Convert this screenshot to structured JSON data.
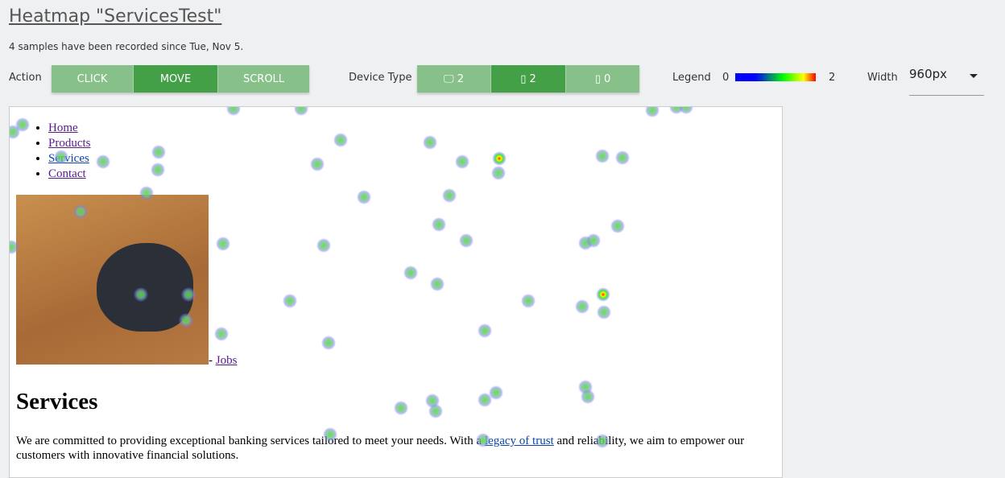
{
  "header": {
    "title": "Heatmap \"ServicesTest\"",
    "subtitle": "4 samples have been recorded since Tue, Nov 5."
  },
  "toolbar": {
    "action_label": "Action",
    "actions": [
      {
        "label": "CLICK",
        "active": false
      },
      {
        "label": "MOVE",
        "active": true
      },
      {
        "label": "SCROLL",
        "active": false
      }
    ],
    "device_label": "Device Type",
    "devices": [
      {
        "icon": "desktop-icon",
        "count": "2",
        "active": false
      },
      {
        "icon": "tablet-icon",
        "count": "2",
        "active": true
      },
      {
        "icon": "mobile-icon",
        "count": "0",
        "active": false
      }
    ],
    "legend_label": "Legend",
    "legend_min": "0",
    "legend_max": "2",
    "width_label": "Width",
    "width_value": "960px"
  },
  "colors": {
    "active": "#43a047",
    "inactive": "#88c08a"
  },
  "page": {
    "nav": [
      "Home",
      "Products",
      "Services",
      "Contact"
    ],
    "jobs_prefix": "- ",
    "jobs_link": "Jobs",
    "heading": "Services",
    "para_1": "We are committed to providing exceptional banking services tailored to meet your needs. With a ",
    "para_link": "legacy of trust",
    "para_2": " and reliability, we aim to empower our customers with innovative financial solutions."
  }
}
